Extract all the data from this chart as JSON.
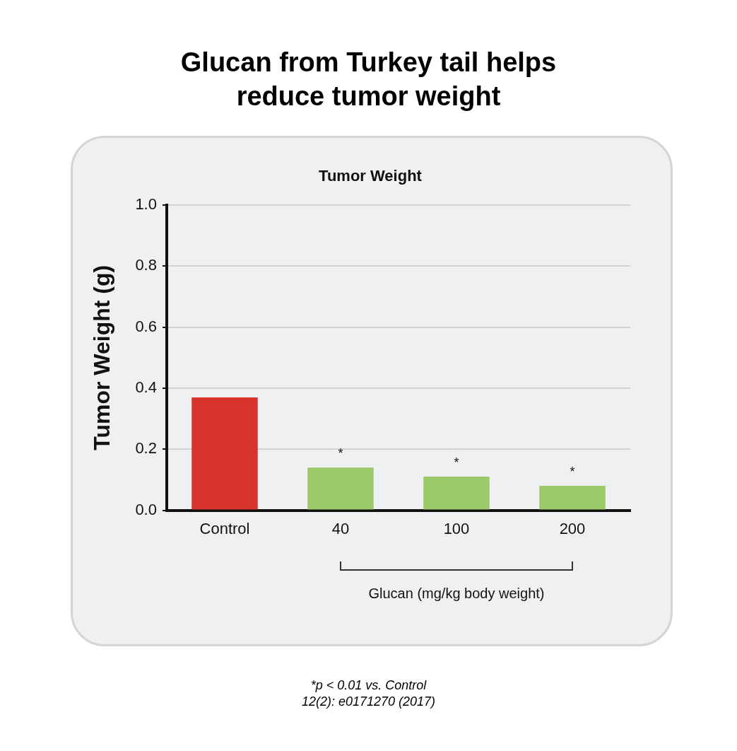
{
  "chart_data": {
    "type": "bar",
    "title": "Glucan from Turkey tail helps reduce tumor weight",
    "subtitle": "Tumor Weight",
    "xlabel": "Glucan (mg/kg body weight)",
    "ylabel": "Tumor Weight (g)",
    "categories": [
      "Control",
      "40",
      "100",
      "200"
    ],
    "values": [
      0.37,
      0.14,
      0.11,
      0.08
    ],
    "colors": [
      "#d9342b",
      "#9cc96a",
      "#9cc96a",
      "#9cc96a"
    ],
    "ylim": [
      0,
      1
    ],
    "yticks": [
      {
        "value": 0,
        "label": "0.0"
      },
      {
        "value": 0.2,
        "label": "0.2"
      },
      {
        "value": 0.4,
        "label": "0.4"
      },
      {
        "value": 0.6,
        "label": "0.6"
      },
      {
        "value": 0.8,
        "label": "0.8"
      },
      {
        "value": 1,
        "label": "1.0"
      }
    ],
    "grid": "y",
    "annotations": [
      {
        "text": "*",
        "x": "40",
        "y": 0.14
      },
      {
        "text": "*",
        "x": "100",
        "y": 0.11
      },
      {
        "text": "*",
        "x": "200",
        "y": 0.08
      },
      "*p < 0.01 vs. Control",
      "12(2): e0171270 (2017)"
    ]
  }
}
